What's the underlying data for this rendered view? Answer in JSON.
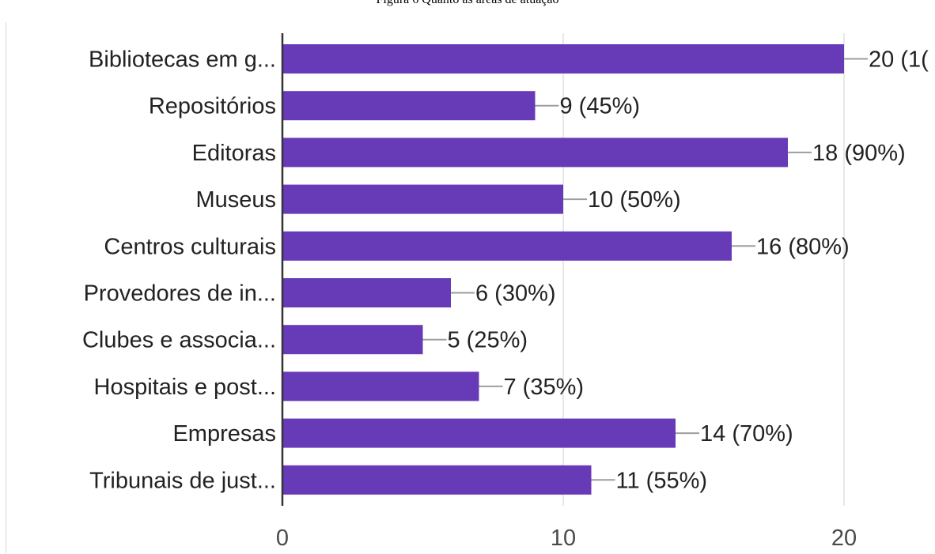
{
  "caption": "Figura 6 Quanto às áreas de atuação",
  "chart_data": {
    "type": "bar",
    "orientation": "horizontal",
    "categories": [
      "Bibliotecas em g...",
      "Repositórios",
      "Editoras",
      "Museus",
      "Centros culturais",
      "Provedores de in...",
      "Clubes e associa...",
      "Hospitais e post...",
      "Empresas",
      "Tribunais de just..."
    ],
    "values": [
      20,
      9,
      18,
      10,
      16,
      6,
      5,
      7,
      14,
      11
    ],
    "value_labels": [
      "20 (1(",
      "9 (45%)",
      "18 (90%)",
      "10 (50%)",
      "16 (80%)",
      "6 (30%)",
      "5 (25%)",
      "7 (35%)",
      "14 (70%)",
      "11 (55%)"
    ],
    "xlim": [
      0,
      20
    ],
    "xticks": [
      0,
      10,
      20
    ],
    "tick_labels": [
      "0",
      "10",
      "20"
    ],
    "grid": true,
    "bar_color": "#673ab7",
    "axis_color": "#333333",
    "grid_color": "#e0e0e0",
    "leader_color": "#9e9e9e"
  }
}
